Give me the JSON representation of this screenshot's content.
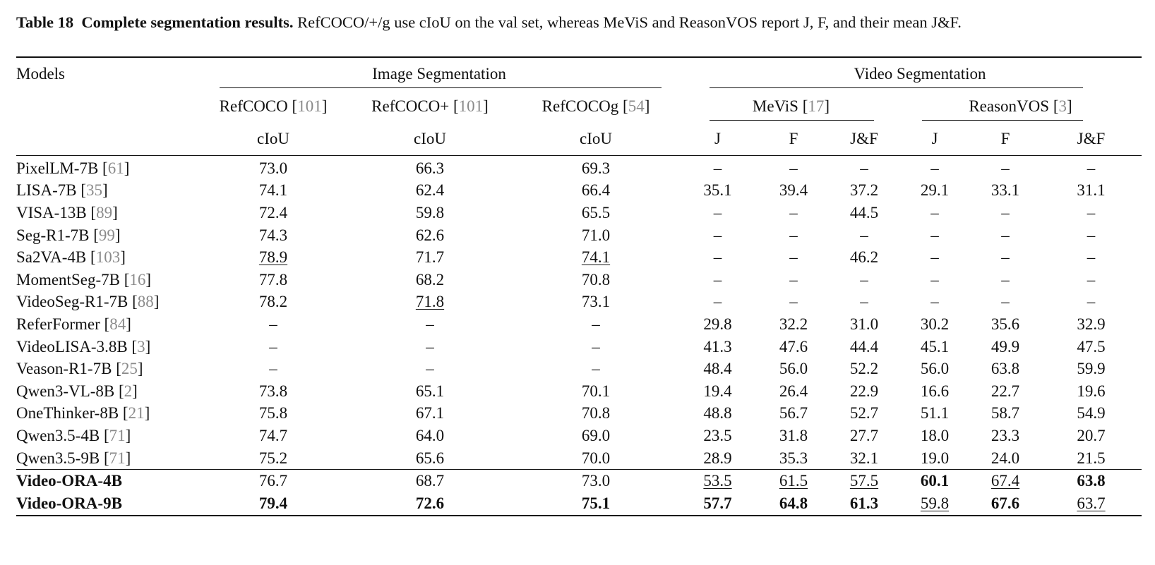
{
  "caption": {
    "label": "Table 18",
    "title": "Complete segmentation results.",
    "text": "RefCOCO/+/g use cIoU on the val set, whereas MeViS and ReasonVOS report J, F, and their mean J&F."
  },
  "header": {
    "models": "Models",
    "image_group": "Image Segmentation",
    "video_group": "Video Segmentation",
    "refcoco": {
      "name": "RefCOCO",
      "ref": "101"
    },
    "refcocoplus": {
      "name": "RefCOCO+",
      "ref": "101"
    },
    "refcocog": {
      "name": "RefCOCOg",
      "ref": "54"
    },
    "mevis": {
      "name": "MeViS",
      "ref": "17"
    },
    "reasonvos": {
      "name": "ReasonVOS",
      "ref": "3"
    },
    "ciou": "cIoU",
    "j": "J",
    "f": "F",
    "jf": "J&F"
  },
  "rows": [
    {
      "name": "PixelLM-7B",
      "ref": "61",
      "v": [
        "73.0",
        "66.3",
        "69.3",
        "–",
        "–",
        "–",
        "–",
        "–",
        "–"
      ]
    },
    {
      "name": "LISA-7B",
      "ref": "35",
      "v": [
        "74.1",
        "62.4",
        "66.4",
        "35.1",
        "39.4",
        "37.2",
        "29.1",
        "33.1",
        "31.1"
      ]
    },
    {
      "name": "VISA-13B",
      "ref": "89",
      "v": [
        "72.4",
        "59.8",
        "65.5",
        "–",
        "–",
        "44.5",
        "–",
        "–",
        "–"
      ]
    },
    {
      "name": "Seg-R1-7B",
      "ref": "99",
      "v": [
        "74.3",
        "62.6",
        "71.0",
        "–",
        "–",
        "–",
        "–",
        "–",
        "–"
      ]
    },
    {
      "name": "Sa2VA-4B",
      "ref": "103",
      "v": [
        "78.9",
        "71.7",
        "74.1",
        "–",
        "–",
        "46.2",
        "–",
        "–",
        "–"
      ],
      "u": [
        0,
        2
      ]
    },
    {
      "name": "MomentSeg-7B",
      "ref": "16",
      "v": [
        "77.8",
        "68.2",
        "70.8",
        "–",
        "–",
        "–",
        "–",
        "–",
        "–"
      ]
    },
    {
      "name": "VideoSeg-R1-7B",
      "ref": "88",
      "v": [
        "78.2",
        "71.8",
        "73.1",
        "–",
        "–",
        "–",
        "–",
        "–",
        "–"
      ],
      "u": [
        1
      ]
    },
    {
      "name": "ReferFormer",
      "ref": "84",
      "v": [
        "–",
        "–",
        "–",
        "29.8",
        "32.2",
        "31.0",
        "30.2",
        "35.6",
        "32.9"
      ]
    },
    {
      "name": "VideoLISA-3.8B",
      "ref": "3",
      "v": [
        "–",
        "–",
        "–",
        "41.3",
        "47.6",
        "44.4",
        "45.1",
        "49.9",
        "47.5"
      ]
    },
    {
      "name": "Veason-R1-7B",
      "ref": "25",
      "v": [
        "–",
        "–",
        "–",
        "48.4",
        "56.0",
        "52.2",
        "56.0",
        "63.8",
        "59.9"
      ]
    },
    {
      "name": "Qwen3-VL-8B",
      "ref": "2",
      "v": [
        "73.8",
        "65.1",
        "70.1",
        "19.4",
        "26.4",
        "22.9",
        "16.6",
        "22.7",
        "19.6"
      ]
    },
    {
      "name": "OneThinker-8B",
      "ref": "21",
      "v": [
        "75.8",
        "67.1",
        "70.8",
        "48.8",
        "56.7",
        "52.7",
        "51.1",
        "58.7",
        "54.9"
      ]
    },
    {
      "name": "Qwen3.5-4B",
      "ref": "71",
      "v": [
        "74.7",
        "64.0",
        "69.0",
        "23.5",
        "31.8",
        "27.7",
        "18.0",
        "23.3",
        "20.7"
      ]
    },
    {
      "name": "Qwen3.5-9B",
      "ref": "71",
      "v": [
        "75.2",
        "65.6",
        "70.0",
        "28.9",
        "35.3",
        "32.1",
        "19.0",
        "24.0",
        "21.5"
      ]
    }
  ],
  "ours": [
    {
      "name": "Video-ORA-4B",
      "v": [
        "76.7",
        "68.7",
        "73.0",
        "53.5",
        "61.5",
        "57.5",
        "60.1",
        "67.4",
        "63.8"
      ],
      "b": [
        6,
        8
      ],
      "u": [
        3,
        4,
        5,
        7
      ]
    },
    {
      "name": "Video-ORA-9B",
      "v": [
        "79.4",
        "72.6",
        "75.1",
        "57.7",
        "64.8",
        "61.3",
        "59.8",
        "67.6",
        "63.7"
      ],
      "b": [
        0,
        1,
        2,
        3,
        4,
        5,
        7
      ],
      "u": [
        6,
        8
      ]
    }
  ]
}
